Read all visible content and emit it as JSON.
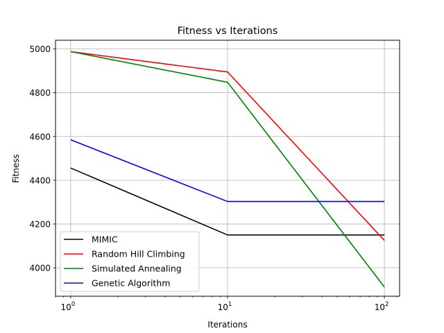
{
  "chart_data": {
    "type": "line",
    "title": "Fitness vs Iterations",
    "xlabel": "Iterations",
    "ylabel": "Fitness",
    "x_scale": "log",
    "x": [
      1,
      10,
      100
    ],
    "x_tick_labels": [
      {
        "value": 1,
        "base": "10",
        "exp": "0"
      },
      {
        "value": 10,
        "base": "10",
        "exp": "1"
      },
      {
        "value": 100,
        "base": "10",
        "exp": "2"
      }
    ],
    "xlim": [
      0.8,
      125
    ],
    "ylim": [
      3870,
      5040
    ],
    "y_ticks": [
      4000,
      4200,
      4400,
      4600,
      4800,
      5000
    ],
    "grid": true,
    "legend_position": "lower-left",
    "series": [
      {
        "name": "MIMIC",
        "color": "#000000",
        "values": [
          4456,
          4150,
          4150
        ]
      },
      {
        "name": "Random Hill Climbing",
        "color": "#ff0000",
        "values": [
          4988,
          4895,
          4125
        ]
      },
      {
        "name": "Simulated Annealing",
        "color": "#008000",
        "values": [
          4988,
          4848,
          3912
        ]
      },
      {
        "name": "Genetic Algorithm",
        "color": "#0000ff",
        "values": [
          4585,
          4303,
          4303
        ]
      }
    ]
  }
}
